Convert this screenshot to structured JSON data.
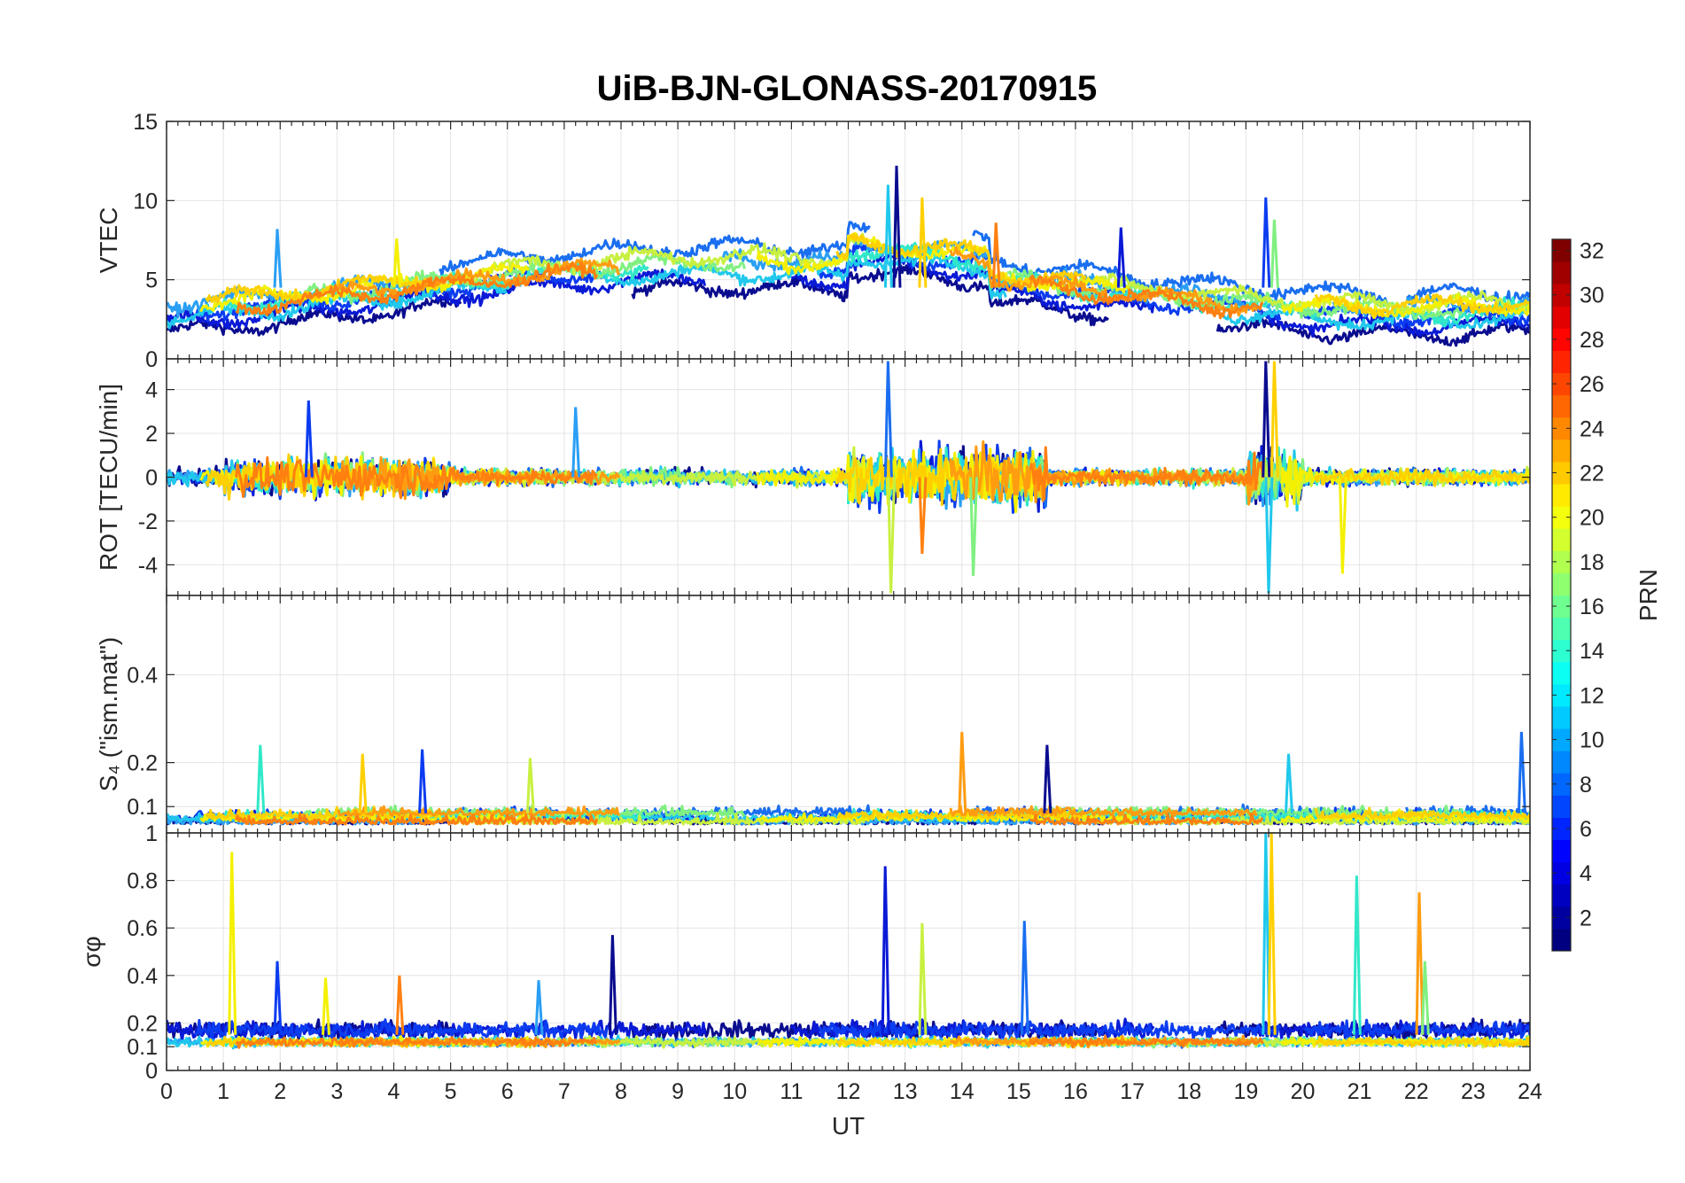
{
  "chart_data": {
    "type": "line",
    "title": "UiB-BJN-GLONASS-20170915",
    "xlabel": "UT",
    "xlim": [
      0,
      24
    ],
    "xticks": [
      0,
      1,
      2,
      3,
      4,
      5,
      6,
      7,
      8,
      9,
      10,
      11,
      12,
      13,
      14,
      15,
      16,
      17,
      18,
      19,
      20,
      21,
      22,
      23,
      24
    ],
    "grid": true,
    "panels": [
      {
        "name": "vtec",
        "ylabel": "VTEC",
        "ylim": [
          0,
          15
        ],
        "yticks": [
          0,
          5,
          10,
          15
        ],
        "typical_range": [
          1,
          8
        ],
        "spikes": [
          [
            12.85,
            12.2
          ],
          [
            12.7,
            11
          ],
          [
            13.3,
            10.2
          ],
          [
            19.35,
            10.2
          ],
          [
            19.5,
            8.8
          ],
          [
            14.6,
            8.6
          ],
          [
            1.95,
            8.2
          ],
          [
            4.05,
            7.6
          ],
          [
            16.8,
            8.3
          ]
        ]
      },
      {
        "name": "rot",
        "ylabel": "ROT [TECU/min]",
        "ylim": [
          -5.4,
          5.4
        ],
        "yticks": [
          -4,
          -2,
          0,
          2,
          4
        ],
        "typical_range": [
          -2,
          2
        ],
        "spikes": [
          [
            12.7,
            5.3
          ],
          [
            12.75,
            -5.3
          ],
          [
            19.35,
            5.3
          ],
          [
            19.4,
            -5.3
          ],
          [
            19.5,
            5.3
          ],
          [
            2.5,
            3.5
          ],
          [
            14.2,
            -4.5
          ],
          [
            13.3,
            -3.5
          ],
          [
            7.2,
            3.2
          ],
          [
            20.7,
            -4.4
          ]
        ]
      },
      {
        "name": "s4",
        "ylabel": "S₄ (\"ism.mat\")",
        "ylim": [
          0.04,
          0.58
        ],
        "yticks": [
          0.1,
          0.2,
          0.4
        ],
        "typical_range": [
          0.05,
          0.12
        ],
        "spikes": [
          [
            1.65,
            0.24
          ],
          [
            14.0,
            0.27
          ],
          [
            23.85,
            0.27
          ],
          [
            6.4,
            0.21
          ],
          [
            15.5,
            0.24
          ],
          [
            19.75,
            0.22
          ],
          [
            3.45,
            0.22
          ],
          [
            4.5,
            0.23
          ]
        ]
      },
      {
        "name": "sigma-phi",
        "ylabel": "σφ",
        "ylim": [
          0,
          1
        ],
        "yticks": [
          0,
          0.1,
          0.2,
          0.4,
          0.6,
          0.8,
          1
        ],
        "typical_range": [
          0.08,
          0.22
        ],
        "spikes": [
          [
            1.15,
            0.92
          ],
          [
            12.65,
            0.86
          ],
          [
            20.95,
            0.82
          ],
          [
            22.05,
            0.75
          ],
          [
            15.1,
            0.63
          ],
          [
            13.3,
            0.62
          ],
          [
            7.85,
            0.57
          ],
          [
            19.35,
            1.0
          ],
          [
            19.45,
            1.0
          ],
          [
            1.95,
            0.46
          ],
          [
            22.15,
            0.46
          ],
          [
            4.1,
            0.4
          ],
          [
            6.55,
            0.38
          ],
          [
            2.8,
            0.39
          ]
        ]
      }
    ],
    "colorbar": {
      "label": "PRN",
      "clim": [
        1,
        32
      ],
      "ticks": [
        2,
        4,
        6,
        8,
        10,
        12,
        14,
        16,
        18,
        20,
        22,
        24,
        26,
        28,
        30,
        32
      ],
      "colormap": "jet"
    },
    "series": [
      {
        "prn": 1,
        "color": "#0a0c8f",
        "vtec_base": 3.0
      },
      {
        "prn": 3,
        "color": "#0a1ad6",
        "vtec_base": 3.6
      },
      {
        "prn": 5,
        "color": "#0c3cf0",
        "vtec_base": 4.2
      },
      {
        "prn": 7,
        "color": "#1a6ef0",
        "vtec_base": 5.6
      },
      {
        "prn": 9,
        "color": "#2a9ff4",
        "vtec_base": 4.8
      },
      {
        "prn": 11,
        "color": "#20c8ec",
        "vtec_base": 3.9
      },
      {
        "prn": 13,
        "color": "#30e8c8",
        "vtec_base": 4.4
      },
      {
        "prn": 15,
        "color": "#80f080",
        "vtec_base": 4.6
      },
      {
        "prn": 17,
        "color": "#c8f040",
        "vtec_base": 5.0
      },
      {
        "prn": 19,
        "color": "#f4f000",
        "vtec_base": 4.7
      },
      {
        "prn": 21,
        "color": "#ffd000",
        "vtec_base": 4.9
      },
      {
        "prn": 23,
        "color": "#ff9c10",
        "vtec_base": 4.5
      },
      {
        "prn": 24,
        "color": "#ff8010",
        "vtec_base": 4.3
      }
    ]
  }
}
